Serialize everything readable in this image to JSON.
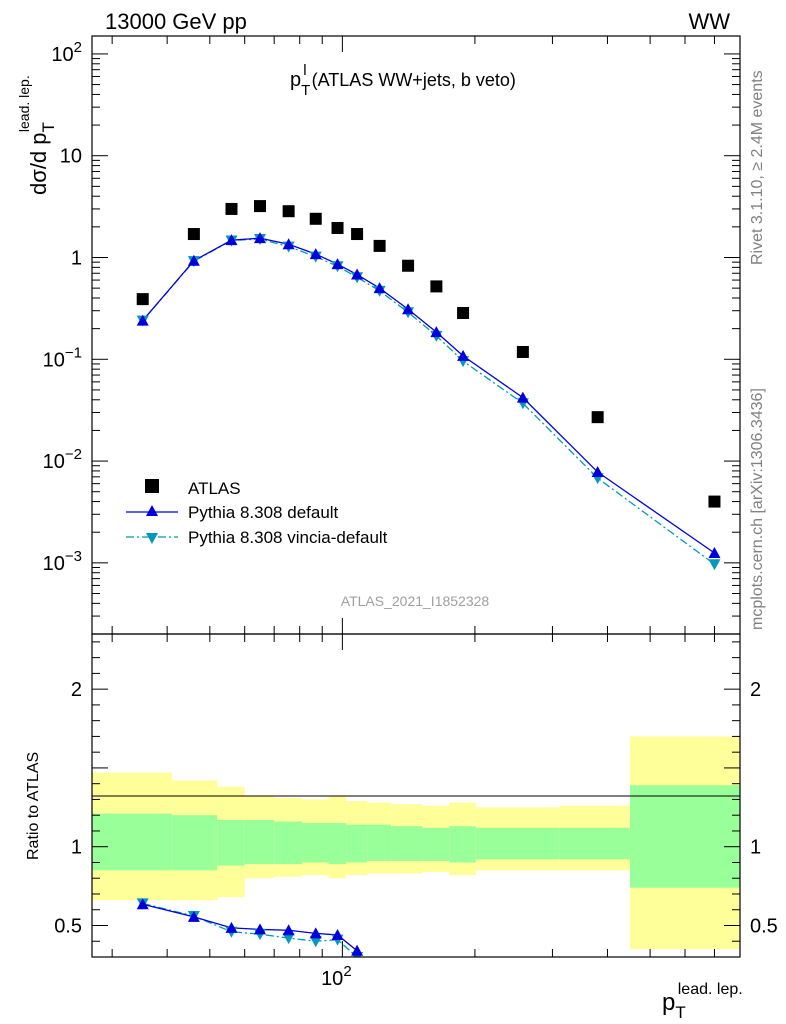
{
  "header": {
    "left_title": "13000 GeV pp",
    "right_title": "WW"
  },
  "side_labels": {
    "rivet": "Rivet 3.1.10, ≥ 2.4M events",
    "mcplots": "mcplots.cern.ch [arXiv:1306.3436]"
  },
  "colors": {
    "data": "#000000",
    "pythia_default": "#0000dd",
    "vincia": "#0099bb",
    "band_inner": "#99ff99",
    "band_outer": "#ffff99"
  },
  "chart_data": [
    {
      "type": "scatter",
      "title_main": "p",
      "title_sub": "T",
      "title_sup": "l",
      "title_rest": " (ATLAS WW+jets, b veto)",
      "ylabel_main": "dσ/d p",
      "ylabel_sub": "T",
      "ylabel_sup": "lead. lep.",
      "analysis_label": "ATLAS_2021_I1852328",
      "yscale": "log",
      "xscale": "log",
      "xlim": [
        27,
        800
      ],
      "ylim": [
        0.0002,
        150
      ],
      "y_ticks": [
        {
          "value": 100,
          "base": "10",
          "exp": "2"
        },
        {
          "value": 10,
          "base": "10",
          "exp": ""
        },
        {
          "value": 1,
          "base": "1",
          "exp": ""
        },
        {
          "value": 0.1,
          "base": "10",
          "exp": "−1"
        },
        {
          "value": 0.01,
          "base": "10",
          "exp": "−2"
        },
        {
          "value": 0.001,
          "base": "10",
          "exp": "−3"
        }
      ],
      "legend": {
        "position": "bottom-left",
        "entries": [
          "ATLAS",
          "Pythia 8.308 default",
          "Pythia 8.308 vincia-default"
        ]
      },
      "x": [
        35.2,
        46.0,
        56.0,
        65.0,
        75.5,
        87.0,
        97.5,
        108.0,
        121.5,
        141.0,
        163.5,
        188.0,
        257.0,
        380.0,
        700.0
      ],
      "series": [
        {
          "name": "ATLAS",
          "marker": "square",
          "values": [
            0.39,
            1.7,
            3.0,
            3.2,
            2.85,
            2.4,
            1.95,
            1.7,
            1.3,
            0.83,
            0.52,
            0.285,
            0.118,
            0.027,
            0.004
          ]
        },
        {
          "name": "Pythia 8.308 default",
          "marker": "triangle-up",
          "values": [
            0.24,
            0.93,
            1.48,
            1.55,
            1.35,
            1.08,
            0.86,
            0.68,
            0.5,
            0.31,
            0.185,
            0.108,
            0.042,
            0.0078,
            0.00125
          ]
        },
        {
          "name": "Pythia 8.308 vincia-default",
          "marker": "triangle-down",
          "values": [
            0.24,
            0.92,
            1.47,
            1.52,
            1.28,
            1.02,
            0.82,
            0.64,
            0.47,
            0.29,
            0.17,
            0.096,
            0.037,
            0.0068,
            0.00097
          ]
        }
      ]
    },
    {
      "type": "line",
      "ylabel": "Ratio to ATLAS",
      "xlabel_main": "p",
      "xlabel_sub": "T",
      "xlabel_sup": "lead. lep.",
      "xscale": "log",
      "xlim": [
        27,
        800
      ],
      "ylim": [
        0.3,
        2.35
      ],
      "x_tick_label": {
        "value": 100,
        "base": "10",
        "exp": "2"
      },
      "y_ticks": [
        {
          "value": 0.5,
          "label": "0.5"
        },
        {
          "value": 1,
          "label": "1"
        },
        {
          "value": 2,
          "label": "2"
        }
      ],
      "bins": [
        27,
        41,
        52,
        60,
        70,
        81,
        93,
        102,
        114,
        129,
        152,
        175,
        201,
        312,
        450,
        800
      ],
      "band_outer": [
        [
          0.66,
          1.47
        ],
        [
          0.66,
          1.42
        ],
        [
          0.68,
          1.38
        ],
        [
          0.8,
          1.32
        ],
        [
          0.81,
          1.31
        ],
        [
          0.82,
          1.3
        ],
        [
          0.8,
          1.32
        ],
        [
          0.82,
          1.29
        ],
        [
          0.83,
          1.28
        ],
        [
          0.83,
          1.27
        ],
        [
          0.84,
          1.26
        ],
        [
          0.82,
          1.28
        ],
        [
          0.85,
          1.25
        ],
        [
          0.85,
          1.26
        ],
        [
          0.35,
          1.7
        ]
      ],
      "band_inner": [
        [
          0.85,
          1.21
        ],
        [
          0.85,
          1.2
        ],
        [
          0.88,
          1.17
        ],
        [
          0.89,
          1.17
        ],
        [
          0.89,
          1.16
        ],
        [
          0.9,
          1.15
        ],
        [
          0.89,
          1.15
        ],
        [
          0.9,
          1.14
        ],
        [
          0.91,
          1.14
        ],
        [
          0.91,
          1.13
        ],
        [
          0.91,
          1.12
        ],
        [
          0.9,
          1.13
        ],
        [
          0.92,
          1.12
        ],
        [
          0.92,
          1.12
        ],
        [
          0.74,
          1.39
        ]
      ],
      "series": [
        {
          "name": "Pythia 8.308 default",
          "marker": "triangle-up",
          "x": [
            35.2,
            46.0,
            56.0,
            65.0,
            75.5,
            87.0,
            97.5,
            108.0
          ],
          "values": [
            0.635,
            0.555,
            0.485,
            0.475,
            0.47,
            0.45,
            0.44,
            0.34
          ]
        },
        {
          "name": "Pythia 8.308 vincia-default",
          "marker": "triangle-down",
          "x": [
            35.2,
            46.0,
            56.0,
            65.0,
            75.5,
            87.0,
            97.5,
            108.0
          ],
          "values": [
            0.64,
            0.56,
            0.46,
            0.445,
            0.42,
            0.4,
            0.41,
            0.3
          ]
        }
      ]
    }
  ]
}
